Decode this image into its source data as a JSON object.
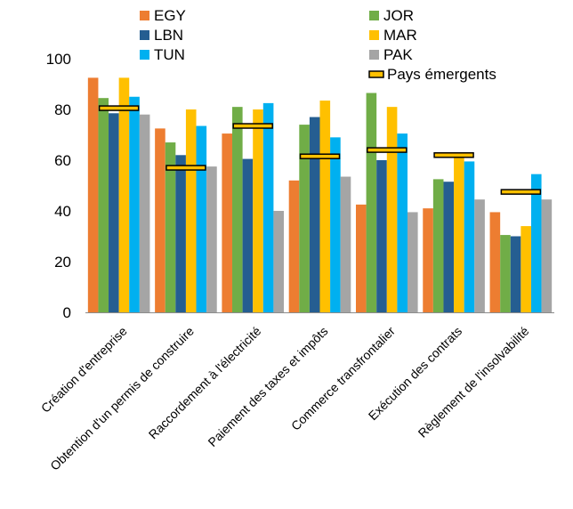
{
  "chart_data": {
    "type": "bar",
    "categories": [
      "Création d'entreprise",
      "Obtention d'un permis de construire",
      "Raccordement à l'électricité",
      "Paiement des taxes et impôts",
      "Commerce transfrontalier",
      "Exécution des contrats",
      "Règlement de l'insolvabilité"
    ],
    "series": [
      {
        "name": "EGY",
        "color": "#ED7D31",
        "values": [
          92.5,
          72.5,
          70.5,
          52,
          42.5,
          41,
          39.5
        ]
      },
      {
        "name": "JOR",
        "color": "#70AD47",
        "values": [
          84.5,
          67,
          81,
          74,
          86.5,
          52.5,
          30.5
        ]
      },
      {
        "name": "LBN",
        "color": "#255E91",
        "values": [
          78.5,
          62,
          60.5,
          77,
          60,
          51.5,
          30
        ]
      },
      {
        "name": "MAR",
        "color": "#FFC000",
        "values": [
          92.5,
          80,
          80,
          83.5,
          81,
          62,
          34
        ]
      },
      {
        "name": "TUN",
        "color": "#00B0F0",
        "values": [
          85,
          73.5,
          82.5,
          69,
          70.5,
          59.5,
          54.5
        ]
      },
      {
        "name": "PAK",
        "color": "#A5A5A5",
        "values": [
          78,
          57.5,
          40,
          53.5,
          39.5,
          44.5,
          44.5
        ]
      }
    ],
    "benchmark": {
      "name": "Pays émergents",
      "fill": "#FFC000",
      "stroke": "#000000",
      "values": [
        80.5,
        57,
        73.5,
        61.5,
        64,
        62,
        47.5
      ]
    },
    "ylim": [
      0,
      100
    ],
    "yticks": [
      "0",
      "20",
      "40",
      "60",
      "80",
      "100"
    ],
    "title": "",
    "xlabel": "",
    "ylabel": "",
    "grid": false,
    "legend_position": "top"
  }
}
